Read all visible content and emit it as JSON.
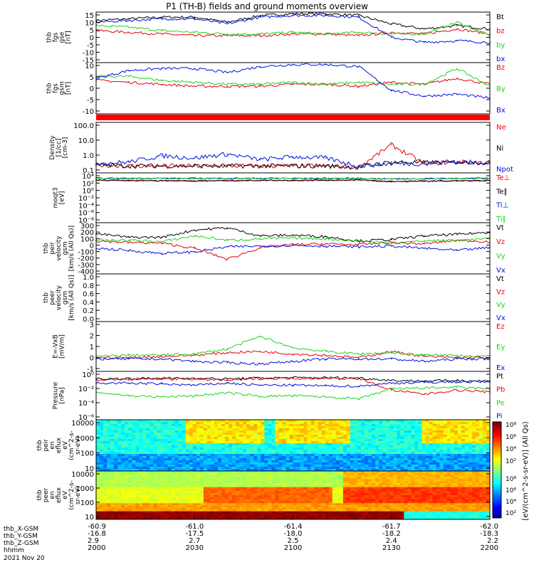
{
  "title": "P1 (TH-B) fields and ground moments overview",
  "colors": {
    "black": "#000000",
    "red": "#e8000b",
    "green": "#1ed41e",
    "blue": "#0010e0",
    "band": "#ff0000"
  },
  "panels": [
    {
      "id": "fgs_gse",
      "ylabel": [
        "thb",
        "fgs",
        "gse",
        "[nT]"
      ],
      "yticks": [
        "15",
        "10",
        "5",
        "0",
        "-5",
        "-10",
        "-15"
      ],
      "legend": [
        {
          "text": "Bt",
          "color": "black"
        },
        {
          "text": "bz",
          "color": "red"
        },
        {
          "text": "by",
          "color": "green"
        },
        {
          "text": "bx",
          "color": "blue"
        }
      ]
    },
    {
      "id": "fgs_gsm",
      "ylabel": [
        "thb",
        "fgs",
        "gsm",
        "[nT]"
      ],
      "yticks": [
        "10",
        "5",
        "0",
        "-5",
        "-10"
      ],
      "legend": [
        {
          "text": "Bz",
          "color": "red"
        },
        {
          "text": "By",
          "color": "green"
        },
        {
          "text": "Bx",
          "color": "blue"
        }
      ]
    },
    {
      "id": "density",
      "ylabel": [
        "Density",
        "[1/cc]",
        "[cm-3]"
      ],
      "yticks": [
        "100.0",
        "10.0",
        "1.0",
        "0.1"
      ],
      "legend": [
        {
          "text": "Ne",
          "color": "red"
        },
        {
          "text": "Ni",
          "color": "black"
        },
        {
          "text": "Npot",
          "color": "blue"
        }
      ]
    },
    {
      "id": "temp",
      "ylabel": [
        "moqt3",
        "[eV]"
      ],
      "yticks": [
        "10⁴",
        "10²",
        "10⁰",
        "10⁻²",
        "10⁻⁴",
        "10⁻⁶",
        "10⁻⁸"
      ],
      "legend": [
        {
          "text": "Te⊥",
          "color": "red"
        },
        {
          "text": "Te∥",
          "color": "black"
        },
        {
          "text": "Ti⊥",
          "color": "blue"
        },
        {
          "text": "Ti∥",
          "color": "green"
        }
      ]
    },
    {
      "id": "vel_ion",
      "ylabel": [
        "thb",
        "peir",
        "velocity",
        "gsm",
        "[km/s (All Qs)]"
      ],
      "yticks": [
        "300",
        "200",
        "100",
        "0",
        "-100",
        "-200",
        "-300",
        "-400"
      ],
      "legend": [
        {
          "text": "Vt",
          "color": "black"
        },
        {
          "text": "Vz",
          "color": "red"
        },
        {
          "text": "Vy",
          "color": "green"
        },
        {
          "text": "Vx",
          "color": "blue"
        }
      ]
    },
    {
      "id": "vel_ele",
      "ylabel": [
        "thb",
        "peer",
        "velocity",
        "gsm",
        "[km/s (All Qs)]"
      ],
      "yticks": [
        "1.0",
        "0.8",
        "0.6",
        "0.4",
        "0.2",
        "0.0"
      ],
      "legend": [
        {
          "text": "Vt",
          "color": "black"
        },
        {
          "text": "Vz",
          "color": "red"
        },
        {
          "text": "Vy",
          "color": "green"
        },
        {
          "text": "Vx",
          "color": "blue"
        }
      ]
    },
    {
      "id": "efield",
      "ylabel": [
        "E=-VxB",
        "[mV/m]"
      ],
      "yticks": [
        "3",
        "2",
        "1",
        "0",
        "-1"
      ],
      "legend": [
        {
          "text": "Ez",
          "color": "red"
        },
        {
          "text": "Ey",
          "color": "green"
        },
        {
          "text": "Ex",
          "color": "blue"
        }
      ]
    },
    {
      "id": "pressure",
      "ylabel": [
        "Pressure",
        "[nPa]"
      ],
      "yticks": [
        "10⁰",
        "10⁻²",
        "10⁻⁴",
        "10⁻⁶"
      ],
      "legend": [
        {
          "text": "Pt",
          "color": "black"
        },
        {
          "text": "Pb",
          "color": "red"
        },
        {
          "text": "Pe",
          "color": "green"
        },
        {
          "text": "Pi",
          "color": "blue"
        }
      ]
    },
    {
      "id": "ion_spec",
      "ylabel": [
        "thb",
        "peir",
        "en",
        "eflux",
        "eV",
        "(cm^2-s-",
        "sr-eV)"
      ],
      "yticks": [
        "10000",
        "1000",
        "100",
        "10"
      ]
    },
    {
      "id": "ele_spec",
      "ylabel": [
        "thb",
        "peer",
        "en",
        "eflux",
        "eV",
        "(cm^2-s-",
        "sr-eV)"
      ],
      "yticks": [
        "10000",
        "1000",
        "100",
        "10"
      ]
    }
  ],
  "colorbar": {
    "label": "[eV/(cm^2-s-sr-eV)] (All Qs)",
    "ion_ticks": [
      "10⁸",
      "10⁶",
      "10⁴",
      "10²"
    ],
    "ele_ticks": [
      "10⁸",
      "10⁶",
      "10⁴",
      "10²"
    ]
  },
  "xaxis": {
    "row_labels": [
      "thb_X-GSM",
      "thb_Y-GSM",
      "thb_Z-GSM",
      "hhmm"
    ],
    "date": "2021 Nov 20",
    "ticks": [
      {
        "x": "-60.9",
        "y": "-16.8",
        "z": "2.9",
        "hhmm": "2000"
      },
      {
        "x": "-61.0",
        "y": "-17.5",
        "z": "2.7",
        "hhmm": "2030"
      },
      {
        "x": "-61.4",
        "y": "-18.0",
        "z": "2.5",
        "hhmm": "2100"
      },
      {
        "x": "-61.7",
        "y": "-18.2",
        "z": "2.4",
        "hhmm": "2130"
      },
      {
        "x": "-62.0",
        "y": "-18.3",
        "z": "2.2",
        "hhmm": "2200"
      }
    ]
  },
  "chart_data": {
    "type": "line",
    "title": "P1 (TH-B) fields and ground moments overview",
    "time_range": [
      "2000",
      "2200"
    ],
    "x": [
      "2000",
      "2010",
      "2020",
      "2030",
      "2040",
      "2050",
      "2100",
      "2110",
      "2120",
      "2130",
      "2140",
      "2150",
      "2200"
    ],
    "subplots": [
      {
        "id": "fgs_gse",
        "ylim": [
          -15,
          15
        ],
        "series": [
          {
            "name": "Bt",
            "color": "black",
            "values": [
              10,
              11,
              12,
              12,
              9,
              13,
              14,
              14,
              13,
              8,
              5,
              7,
              5
            ]
          },
          {
            "name": "bz",
            "color": "red",
            "values": [
              4,
              3,
              2,
              1,
              1,
              1,
              2,
              2,
              1,
              3,
              2,
              5,
              2
            ]
          },
          {
            "name": "by",
            "color": "green",
            "values": [
              7,
              6,
              4,
              3,
              2,
              2,
              3,
              2,
              3,
              2,
              2,
              9,
              1
            ]
          },
          {
            "name": "bx",
            "color": "blue",
            "values": [
              9,
              10,
              11,
              11,
              8,
              12,
              13,
              13,
              12,
              0,
              -3,
              -2,
              -3
            ]
          }
        ]
      },
      {
        "id": "fgs_gsm",
        "ylim": [
          -13,
          13
        ],
        "series": [
          {
            "name": "Bz",
            "color": "red",
            "values": [
              4,
              3,
              2,
              1,
              1,
              1,
              2,
              2,
              1,
              3,
              2,
              5,
              2
            ]
          },
          {
            "name": "By",
            "color": "green",
            "values": [
              6,
              6,
              4,
              3,
              2,
              2,
              3,
              2,
              3,
              2,
              2,
              10,
              1
            ]
          },
          {
            "name": "Bx",
            "color": "blue",
            "values": [
              5,
              9,
              10,
              10,
              8,
              11,
              12,
              12,
              11,
              -1,
              -4,
              -3,
              -5
            ]
          }
        ]
      },
      {
        "id": "density",
        "scale": "log",
        "ylim": [
          0.03,
          200
        ],
        "series": [
          {
            "name": "Ne",
            "color": "red",
            "values": [
              0.12,
              0.1,
              0.1,
              0.1,
              0.1,
              0.1,
              0.1,
              0.1,
              0.08,
              4,
              0.15,
              0.2,
              0.18
            ]
          },
          {
            "name": "Ni",
            "color": "black",
            "values": [
              0.13,
              0.1,
              0.1,
              0.1,
              0.1,
              0.1,
              0.1,
              0.1,
              0.08,
              0.2,
              0.18,
              0.2,
              0.18
            ]
          },
          {
            "name": "Npot",
            "color": "blue",
            "values": [
              0.15,
              0.2,
              0.6,
              0.4,
              0.8,
              0.3,
              0.5,
              0.4,
              0.1,
              0.15,
              0.15,
              0.2,
              0.18
            ]
          }
        ]
      },
      {
        "id": "temp",
        "scale": "log",
        "ylim": [
          1e-09,
          100000.0
        ],
        "series": [
          {
            "name": "Te⊥",
            "color": "red",
            "values": [
              800,
              700,
              600,
              500,
              600,
              700,
              700,
              800,
              900,
              300,
              400,
              500,
              600
            ]
          },
          {
            "name": "Te∥",
            "color": "black",
            "values": [
              900,
              800,
              700,
              600,
              700,
              800,
              800,
              900,
              1000,
              400,
              500,
              600,
              700
            ]
          },
          {
            "name": "Ti⊥",
            "color": "blue",
            "values": [
              3000,
              3000,
              3000,
              3000,
              3000,
              3000,
              3000,
              3000,
              3000,
              2000,
              2500,
              3000,
              3000
            ]
          },
          {
            "name": "Ti∥",
            "color": "green",
            "values": [
              2500,
              2500,
              2500,
              2500,
              2500,
              2500,
              2500,
              2500,
              2500,
              1800,
              2200,
              2500,
              2500
            ]
          }
        ]
      },
      {
        "id": "vel_ion",
        "ylim": [
          -400,
          300
        ],
        "series": [
          {
            "name": "Vt",
            "color": "black",
            "values": [
              150,
              100,
              100,
              200,
              230,
              120,
              130,
              110,
              50,
              70,
              120,
              140,
              170
            ]
          },
          {
            "name": "Vz",
            "color": "red",
            "values": [
              50,
              30,
              20,
              -50,
              -200,
              -40,
              0,
              10,
              0,
              30,
              10,
              60,
              40
            ]
          },
          {
            "name": "Vy",
            "color": "green",
            "values": [
              60,
              60,
              40,
              120,
              60,
              80,
              90,
              80,
              50,
              20,
              50,
              60,
              80
            ]
          },
          {
            "name": "Vx",
            "color": "blue",
            "values": [
              -50,
              -80,
              -120,
              -100,
              -30,
              -20,
              -10,
              -20,
              -30,
              -20,
              -50,
              -80,
              -40
            ]
          }
        ]
      },
      {
        "id": "vel_ele",
        "ylim": [
          0,
          1
        ],
        "series": []
      },
      {
        "id": "efield",
        "ylim": [
          -1,
          3
        ],
        "series": [
          {
            "name": "Ez",
            "color": "red",
            "values": [
              0.1,
              0.1,
              0.2,
              0.3,
              0.5,
              0.6,
              0.4,
              0.3,
              0.1,
              0.6,
              0.2,
              0.1,
              0.1
            ]
          },
          {
            "name": "Ey",
            "color": "green",
            "values": [
              0.2,
              0.3,
              0.3,
              0.4,
              0.8,
              1.8,
              0.9,
              0.6,
              0.4,
              0.5,
              0.3,
              0.3,
              0.2
            ]
          },
          {
            "name": "Ex",
            "color": "blue",
            "values": [
              0,
              0,
              0,
              -0.2,
              -0.3,
              -0.4,
              -0.2,
              0,
              0,
              0,
              -0.2,
              0,
              0
            ]
          }
        ]
      },
      {
        "id": "pressure",
        "scale": "log",
        "ylim": [
          1e-07,
          1
        ],
        "series": [
          {
            "name": "Pt",
            "color": "black",
            "values": [
              0.08,
              0.09,
              0.1,
              0.1,
              0.08,
              0.11,
              0.12,
              0.12,
              0.11,
              0.05,
              0.04,
              0.05,
              0.04
            ]
          },
          {
            "name": "Pb",
            "color": "red",
            "values": [
              0.06,
              0.07,
              0.08,
              0.08,
              0.05,
              0.09,
              0.1,
              0.1,
              0.09,
              0.002,
              0.0005,
              0.002,
              0.001
            ]
          },
          {
            "name": "Pe",
            "color": "green",
            "values": [
              0.001,
              0.0003,
              0.0002,
              0.0003,
              0.0008,
              0.00025,
              0.0003,
              0.0002,
              0.0001,
              0.003,
              0.004,
              0.005,
              0.003
            ]
          },
          {
            "name": "Pi",
            "color": "blue",
            "values": [
              0.02,
              0.02,
              0.015,
              0.01,
              0.02,
              0.01,
              0.01,
              0.008,
              0.007,
              0.02,
              0.025,
              0.03,
              0.03
            ]
          }
        ]
      }
    ]
  }
}
